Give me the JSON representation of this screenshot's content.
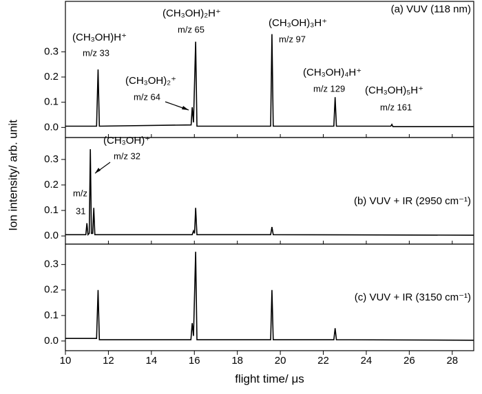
{
  "chart_data": [
    {
      "type": "line",
      "label": "(a) VUV (118 nm)",
      "x": [
        10,
        11.45,
        11.52,
        11.58,
        15.85,
        15.9,
        15.96,
        16.06,
        16.12,
        19.55,
        19.61,
        19.67,
        22.49,
        22.55,
        22.61,
        25.14,
        25.19,
        25.24,
        29
      ],
      "values": [
        0.005,
        0.005,
        0.23,
        0.005,
        0.01,
        0.08,
        0.02,
        0.34,
        0.005,
        0.005,
        0.37,
        0.005,
        0.005,
        0.12,
        0.005,
        0.005,
        0.012,
        0.003,
        0.003
      ],
      "color": "#000000",
      "xlim": [
        10,
        29
      ],
      "ylim": [
        -0.04,
        0.5
      ],
      "yticks": [
        {
          "value": 0,
          "label": "0.0"
        },
        0.1,
        0.2,
        0.3
      ],
      "annotations": [
        "(CH₃OH)H⁺",
        "m/z 33",
        "(CH₃OH)₂H⁺",
        "m/z 65",
        "(CH₃OH)₂⁺",
        "m/z 64",
        "(CH₃OH)₃H⁺",
        "m/z 97",
        "(CH₃OH)₄H⁺",
        "m/z 129",
        "(CH₃OH)₅H⁺",
        "m/z 161"
      ]
    },
    {
      "type": "line",
      "label": "(b) VUV + IR (2950 cm⁻¹)",
      "x": [
        10,
        10.95,
        11.0,
        11.05,
        11.11,
        11.16,
        11.21,
        11.27,
        11.32,
        11.37,
        15.9,
        15.96,
        16.01,
        16.06,
        16.12,
        19.55,
        19.61,
        19.67,
        29
      ],
      "values": [
        0.005,
        0.005,
        0.05,
        0.005,
        0.01,
        0.34,
        0.01,
        0.01,
        0.11,
        0.005,
        0.005,
        0.02,
        0.01,
        0.11,
        0.005,
        0.005,
        0.035,
        0.005,
        0.003
      ],
      "color": "#000000",
      "xlim": [
        10,
        29
      ],
      "ylim": [
        -0.032,
        0.386
      ],
      "yticks": [
        {
          "value": 0,
          "label": "0.0"
        },
        0.1,
        0.2,
        0.3
      ],
      "ylabel": "Ion intensity/ arb. unit",
      "annotations": [
        "(CH₃OH)⁺",
        "m/z 32",
        "m/z",
        "31"
      ]
    },
    {
      "type": "line",
      "label": "(c) VUV + IR (3150 cm⁻¹)",
      "x": [
        10,
        11.45,
        11.52,
        11.58,
        15.84,
        15.9,
        15.96,
        16.06,
        16.12,
        19.55,
        19.61,
        19.67,
        22.49,
        22.55,
        22.61,
        29
      ],
      "values": [
        0.01,
        0.01,
        0.2,
        0.005,
        0.005,
        0.07,
        0.02,
        0.35,
        0.005,
        0.005,
        0.2,
        0.005,
        0.005,
        0.05,
        0.005,
        0.003
      ],
      "color": "#000000",
      "xlim": [
        10,
        29
      ],
      "ylim": [
        -0.038,
        0.38
      ],
      "yticks": [
        {
          "value": 0,
          "label": "0.0"
        },
        0.1,
        0.2,
        0.3
      ],
      "xticks": [
        10,
        12,
        14,
        16,
        18,
        20,
        22,
        24,
        26,
        28
      ],
      "xlabel": "flight time/ μs",
      "annotations": []
    }
  ]
}
